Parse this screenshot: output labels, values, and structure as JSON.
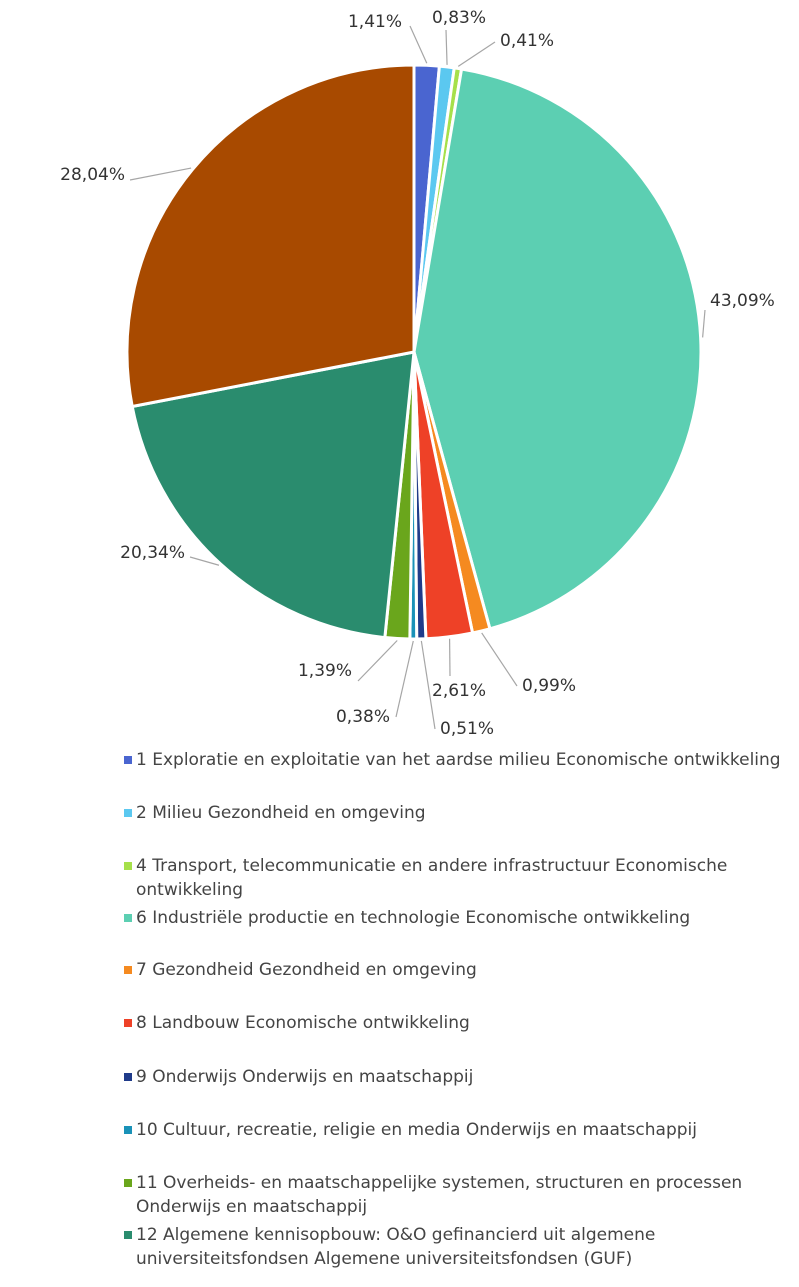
{
  "chart_data": {
    "type": "pie",
    "categories": [
      "1 Exploratie en exploitatie van het aardse milieu Economische ontwikkeling",
      "2 Milieu Gezondheid en omgeving",
      "4 Transport, telecommunicatie en andere infrastructuur Economische ontwikkeling",
      "6 Industriële productie en technologie Economische ontwikkeling",
      "7 Gezondheid Gezondheid en omgeving",
      "8 Landbouw Economische ontwikkeling",
      "9 Onderwijs Onderwijs en maatschappij",
      "10 Cultuur, recreatie, religie en media Onderwijs en maatschappij",
      "11 Overheids- en maatschappelijke systemen, structuren en processen Onderwijs en maatschappij",
      "12  Algemene kennisopbouw: O&O gefinancierd uit algemene universiteitsfondsen Algemene universiteitsfondsen (GUF)",
      null
    ],
    "values": [
      1.41,
      0.83,
      0.41,
      43.09,
      0.99,
      2.61,
      0.51,
      0.38,
      1.39,
      20.34,
      28.04
    ],
    "value_labels": [
      "1,41%",
      "0,83%",
      "0,41%",
      "43,09%",
      "0,99%",
      "2,61%",
      "0,51%",
      "0,38%",
      "1,39%",
      "20,34%",
      "28,04%"
    ],
    "colors": [
      "#4a65d0",
      "#5bc8f0",
      "#a6e04a",
      "#5ccfb2",
      "#f58a20",
      "#ee4127",
      "#1f3b8a",
      "#1a92b8",
      "#6aa61c",
      "#2a8c6e",
      "#a84a00"
    ],
    "legend": "bottom"
  }
}
